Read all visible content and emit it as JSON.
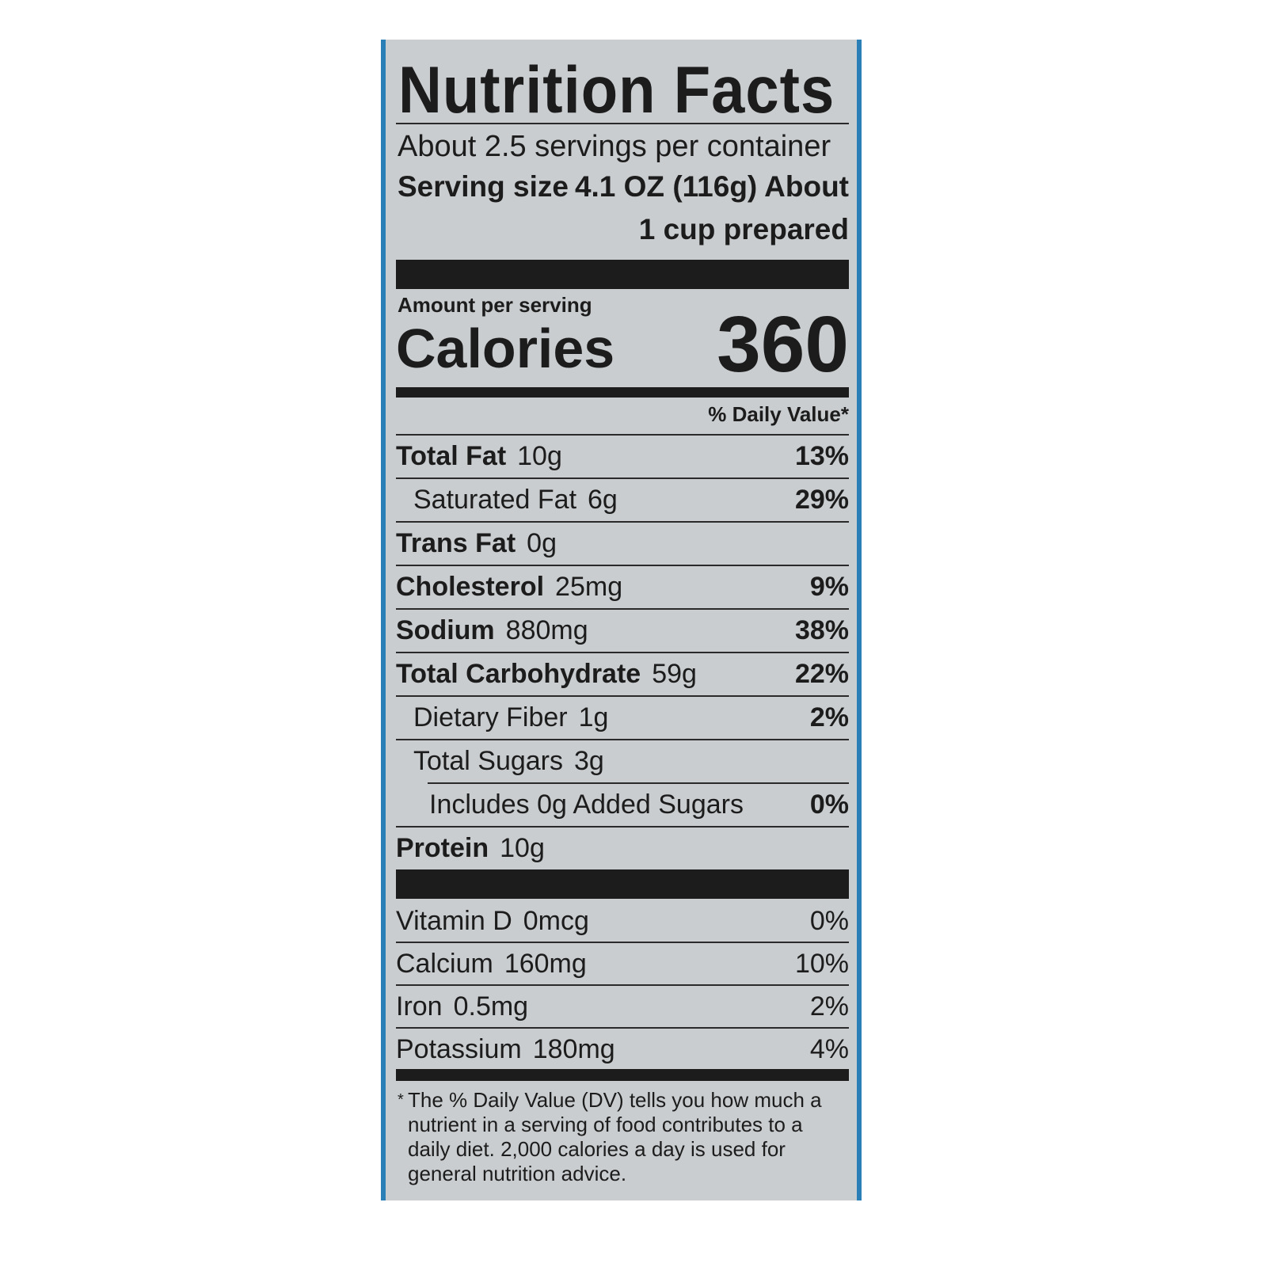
{
  "header": {
    "title": "Nutrition Facts",
    "servings": "About 2.5 servings per container",
    "serving_size_label": "Serving size",
    "serving_size": "4.1 OZ (116g) About",
    "serving_size_cont": "1 cup prepared"
  },
  "calories": {
    "heading": "Amount per serving",
    "label": "Calories",
    "value": "360"
  },
  "dv_heading": "% Daily Value*",
  "nutrients": [
    {
      "name": "Total Fat",
      "amount": "10g",
      "dv": "13%"
    },
    {
      "name": "Saturated Fat",
      "amount": "6g",
      "dv": "29%"
    },
    {
      "name": "Trans Fat",
      "amount": "0g"
    },
    {
      "name": "Cholesterol",
      "amount": "25mg",
      "dv": "9%"
    },
    {
      "name": "Sodium",
      "amount": "880mg",
      "dv": "38%"
    },
    {
      "name": "Total Carbohydrate",
      "amount": "59g",
      "dv": "22%"
    },
    {
      "name": "Dietary Fiber",
      "amount": "1g",
      "dv": "2%"
    },
    {
      "name": "Total Sugars",
      "amount": "3g"
    },
    {
      "name": "Includes 0g Added Sugars",
      "dv": "0%"
    },
    {
      "name": "Protein",
      "amount": "10g"
    }
  ],
  "micronutrients": [
    {
      "name": "Vitamin D",
      "amount": "0mcg",
      "dv": "0%"
    },
    {
      "name": "Calcium",
      "amount": "160mg",
      "dv": "10%"
    },
    {
      "name": "Iron",
      "amount": "0.5mg",
      "dv": "2%"
    },
    {
      "name": "Potassium",
      "amount": "180mg",
      "dv": "4%"
    }
  ],
  "footnote": {
    "mark": "*",
    "text": "The % Daily Value (DV) tells you how much a nutrient in a serving of food contributes to a daily diet. 2,000 calories a day is used for general nutrition advice."
  }
}
